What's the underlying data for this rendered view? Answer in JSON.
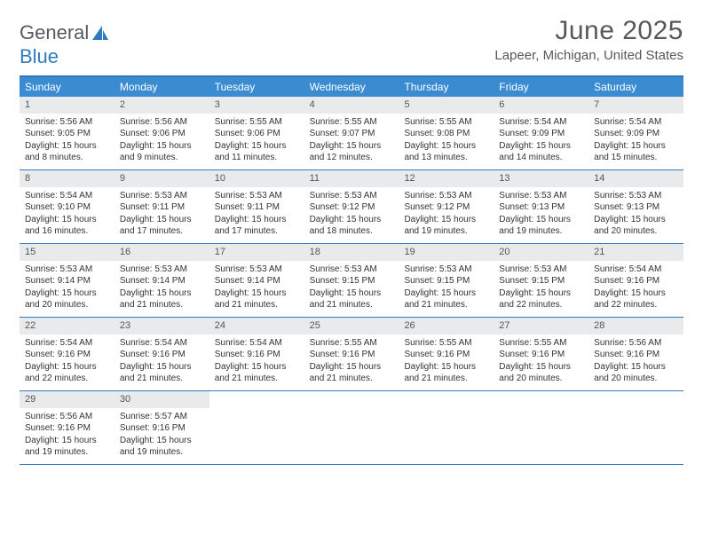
{
  "brand": {
    "part1": "General",
    "part2": "Blue"
  },
  "title": "June 2025",
  "location": "Lapeer, Michigan, United States",
  "colors": {
    "header_bar": "#3a8bd0",
    "accent_border": "#2f7bbf",
    "daynum_bg": "#e9eaec",
    "text": "#333333",
    "title_text": "#56595c"
  },
  "day_names": [
    "Sunday",
    "Monday",
    "Tuesday",
    "Wednesday",
    "Thursday",
    "Friday",
    "Saturday"
  ],
  "weeks": [
    [
      {
        "day": 1,
        "sunrise": "5:56 AM",
        "sunset": "9:05 PM",
        "daylight": "15 hours and 8 minutes."
      },
      {
        "day": 2,
        "sunrise": "5:56 AM",
        "sunset": "9:06 PM",
        "daylight": "15 hours and 9 minutes."
      },
      {
        "day": 3,
        "sunrise": "5:55 AM",
        "sunset": "9:06 PM",
        "daylight": "15 hours and 11 minutes."
      },
      {
        "day": 4,
        "sunrise": "5:55 AM",
        "sunset": "9:07 PM",
        "daylight": "15 hours and 12 minutes."
      },
      {
        "day": 5,
        "sunrise": "5:55 AM",
        "sunset": "9:08 PM",
        "daylight": "15 hours and 13 minutes."
      },
      {
        "day": 6,
        "sunrise": "5:54 AM",
        "sunset": "9:09 PM",
        "daylight": "15 hours and 14 minutes."
      },
      {
        "day": 7,
        "sunrise": "5:54 AM",
        "sunset": "9:09 PM",
        "daylight": "15 hours and 15 minutes."
      }
    ],
    [
      {
        "day": 8,
        "sunrise": "5:54 AM",
        "sunset": "9:10 PM",
        "daylight": "15 hours and 16 minutes."
      },
      {
        "day": 9,
        "sunrise": "5:53 AM",
        "sunset": "9:11 PM",
        "daylight": "15 hours and 17 minutes."
      },
      {
        "day": 10,
        "sunrise": "5:53 AM",
        "sunset": "9:11 PM",
        "daylight": "15 hours and 17 minutes."
      },
      {
        "day": 11,
        "sunrise": "5:53 AM",
        "sunset": "9:12 PM",
        "daylight": "15 hours and 18 minutes."
      },
      {
        "day": 12,
        "sunrise": "5:53 AM",
        "sunset": "9:12 PM",
        "daylight": "15 hours and 19 minutes."
      },
      {
        "day": 13,
        "sunrise": "5:53 AM",
        "sunset": "9:13 PM",
        "daylight": "15 hours and 19 minutes."
      },
      {
        "day": 14,
        "sunrise": "5:53 AM",
        "sunset": "9:13 PM",
        "daylight": "15 hours and 20 minutes."
      }
    ],
    [
      {
        "day": 15,
        "sunrise": "5:53 AM",
        "sunset": "9:14 PM",
        "daylight": "15 hours and 20 minutes."
      },
      {
        "day": 16,
        "sunrise": "5:53 AM",
        "sunset": "9:14 PM",
        "daylight": "15 hours and 21 minutes."
      },
      {
        "day": 17,
        "sunrise": "5:53 AM",
        "sunset": "9:14 PM",
        "daylight": "15 hours and 21 minutes."
      },
      {
        "day": 18,
        "sunrise": "5:53 AM",
        "sunset": "9:15 PM",
        "daylight": "15 hours and 21 minutes."
      },
      {
        "day": 19,
        "sunrise": "5:53 AM",
        "sunset": "9:15 PM",
        "daylight": "15 hours and 21 minutes."
      },
      {
        "day": 20,
        "sunrise": "5:53 AM",
        "sunset": "9:15 PM",
        "daylight": "15 hours and 22 minutes."
      },
      {
        "day": 21,
        "sunrise": "5:54 AM",
        "sunset": "9:16 PM",
        "daylight": "15 hours and 22 minutes."
      }
    ],
    [
      {
        "day": 22,
        "sunrise": "5:54 AM",
        "sunset": "9:16 PM",
        "daylight": "15 hours and 22 minutes."
      },
      {
        "day": 23,
        "sunrise": "5:54 AM",
        "sunset": "9:16 PM",
        "daylight": "15 hours and 21 minutes."
      },
      {
        "day": 24,
        "sunrise": "5:54 AM",
        "sunset": "9:16 PM",
        "daylight": "15 hours and 21 minutes."
      },
      {
        "day": 25,
        "sunrise": "5:55 AM",
        "sunset": "9:16 PM",
        "daylight": "15 hours and 21 minutes."
      },
      {
        "day": 26,
        "sunrise": "5:55 AM",
        "sunset": "9:16 PM",
        "daylight": "15 hours and 21 minutes."
      },
      {
        "day": 27,
        "sunrise": "5:55 AM",
        "sunset": "9:16 PM",
        "daylight": "15 hours and 20 minutes."
      },
      {
        "day": 28,
        "sunrise": "5:56 AM",
        "sunset": "9:16 PM",
        "daylight": "15 hours and 20 minutes."
      }
    ],
    [
      {
        "day": 29,
        "sunrise": "5:56 AM",
        "sunset": "9:16 PM",
        "daylight": "15 hours and 19 minutes."
      },
      {
        "day": 30,
        "sunrise": "5:57 AM",
        "sunset": "9:16 PM",
        "daylight": "15 hours and 19 minutes."
      },
      null,
      null,
      null,
      null,
      null
    ]
  ],
  "labels": {
    "sunrise": "Sunrise:",
    "sunset": "Sunset:",
    "daylight": "Daylight:"
  }
}
